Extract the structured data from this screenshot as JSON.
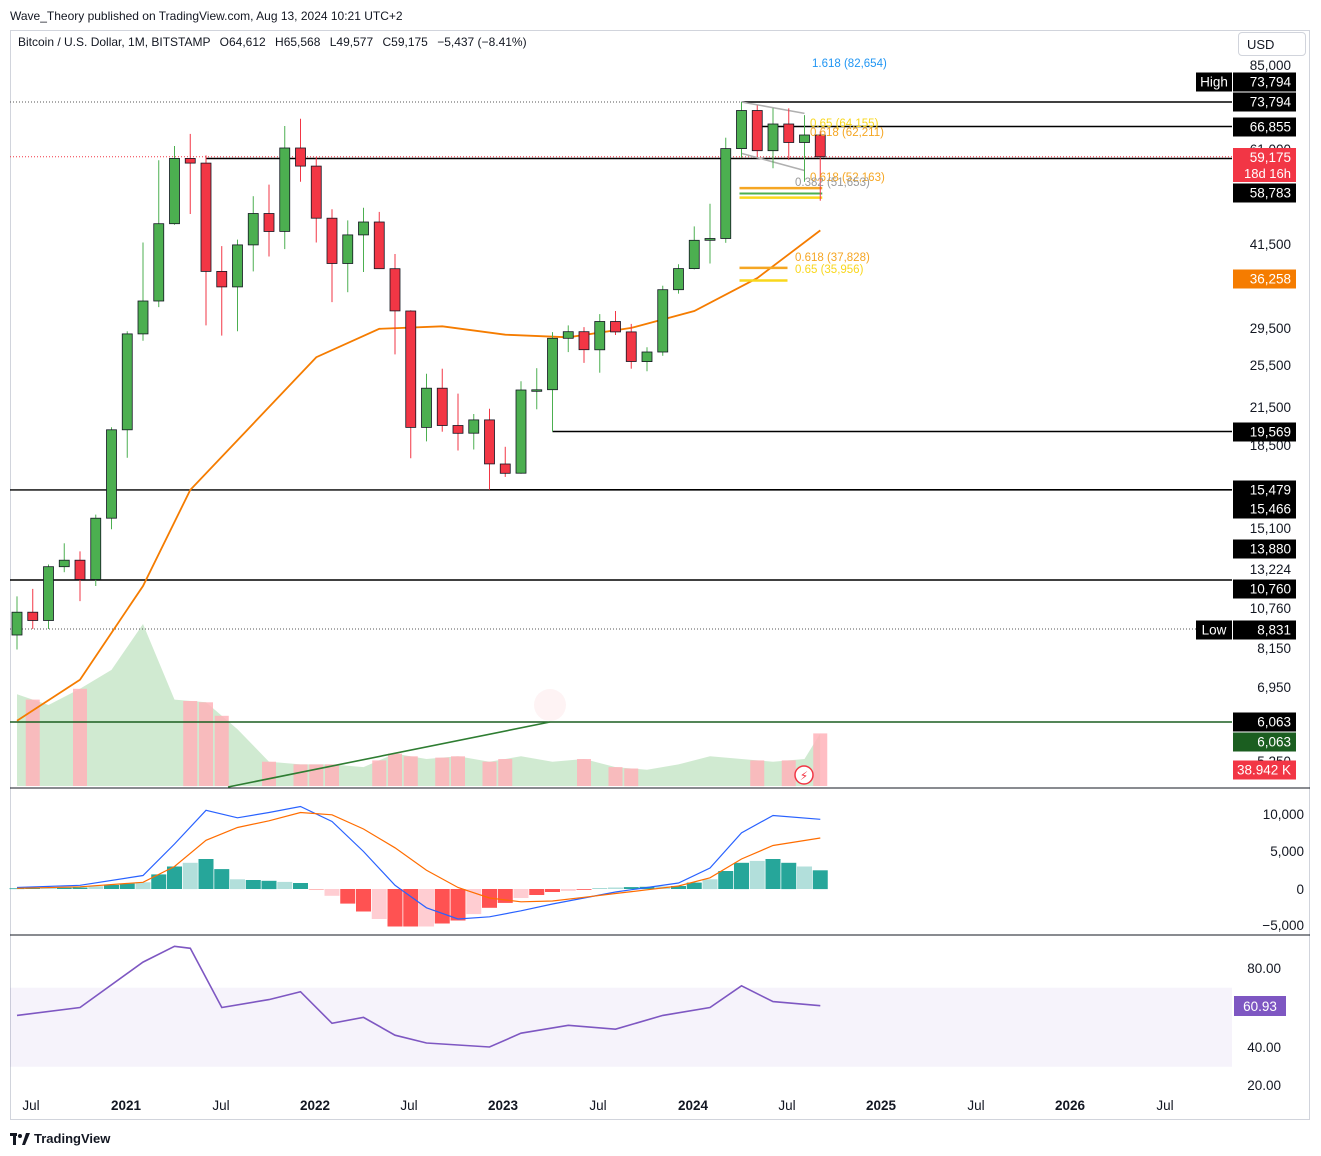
{
  "header": {
    "publisher": "Wave_Theory published on TradingView.com, Aug 13, 2024 10:21 UTC+2",
    "symbol": "Bitcoin / U.S. Dollar, 1M, BITSTAMP",
    "open_label": "O",
    "open": "64,612",
    "high_label": "H",
    "high": "65,568",
    "low_label": "L",
    "low": "49,577",
    "close_label": "C",
    "close": "59,175",
    "change": "−5,437 (−8.41%)",
    "currency": "USD"
  },
  "footer": {
    "brand": "TradingView",
    "logo_icon": "tradingview-logo-icon"
  },
  "colors": {
    "up": "#26a69a",
    "up_candle": "#4caf50",
    "down_candle": "#f23645",
    "ma": "#f57c00",
    "macd": "#2962ff",
    "signal": "#ff6d00",
    "rsi": "#7e57c2",
    "vol_up": "#c8e6c9",
    "vol_down": "#ffb3ba"
  },
  "price_axis": {
    "labels": [
      "85,000",
      "61,000",
      "41,500",
      "29,500",
      "25,500",
      "21,500",
      "18,500",
      "15,100",
      "13,224",
      "10,760",
      "8,150",
      "6,950",
      "5,250"
    ]
  },
  "price_tags": [
    {
      "text": "High",
      "value": "73,794",
      "style": "black"
    },
    {
      "text": "",
      "value": "73,794",
      "style": "black"
    },
    {
      "text": "",
      "value": "66,855",
      "style": "black"
    },
    {
      "text": "",
      "value": "59,175",
      "sub": "18d 16h",
      "style": "red"
    },
    {
      "text": "",
      "value": "58,783",
      "style": "black"
    },
    {
      "text": "",
      "value": "36,258",
      "style": "orange"
    },
    {
      "text": "",
      "value": "19,569",
      "style": "black"
    },
    {
      "text": "",
      "value": "15,479",
      "style": "black"
    },
    {
      "text": "",
      "value": "15,466",
      "style": "black"
    },
    {
      "text": "",
      "value": "13,880",
      "style": "black"
    },
    {
      "text": "",
      "value": "10,760",
      "style": "black"
    },
    {
      "text": "Low",
      "value": "8,831",
      "style": "black"
    },
    {
      "text": "",
      "value": "6,063",
      "style": "black"
    },
    {
      "text": "",
      "value": "6,063",
      "style": "green"
    },
    {
      "text": "",
      "value": "38.942 K",
      "style": "red"
    }
  ],
  "fib_labels": [
    {
      "text": "1.618 (82,654)",
      "color": "#2196f3"
    },
    {
      "text": "0.65 (64,155)",
      "color": "#f9d71c"
    },
    {
      "text": "0.618 (62,211)",
      "color": "#f5a623"
    },
    {
      "text": "0.618 (52,163)",
      "color": "#f5a623"
    },
    {
      "text": "0.382 (51,653)",
      "color": "#999999"
    },
    {
      "text": "0.618 (37,828)",
      "color": "#f5a623"
    },
    {
      "text": "0.65 (35,956)",
      "color": "#f9d71c"
    }
  ],
  "time_axis": [
    "Jul",
    "2021",
    "Jul",
    "2022",
    "Jul",
    "2023",
    "Jul",
    "2024",
    "Jul",
    "2025",
    "Jul",
    "2026",
    "Jul"
  ],
  "macd_axis": [
    "10,000",
    "5,000",
    "0",
    "−5,000"
  ],
  "rsi_axis": [
    "80.00",
    "40.00",
    "20.00"
  ],
  "rsi_tag": "60.93",
  "chart_data": [
    {
      "type": "candlestick",
      "title": "Bitcoin / U.S. Dollar, 1M, BITSTAMP",
      "scale": "log",
      "x": [
        "2020-05",
        "2020-06",
        "2020-07",
        "2020-08",
        "2020-09",
        "2020-10",
        "2020-11",
        "2020-12",
        "2021-01",
        "2021-02",
        "2021-03",
        "2021-04",
        "2021-05",
        "2021-06",
        "2021-07",
        "2021-08",
        "2021-09",
        "2021-10",
        "2021-11",
        "2021-12",
        "2022-01",
        "2022-02",
        "2022-03",
        "2022-04",
        "2022-05",
        "2022-06",
        "2022-07",
        "2022-08",
        "2022-09",
        "2022-10",
        "2022-11",
        "2022-12",
        "2023-01",
        "2023-02",
        "2023-03",
        "2023-04",
        "2023-05",
        "2023-06",
        "2023-07",
        "2023-08",
        "2023-09",
        "2023-10",
        "2023-11",
        "2023-12",
        "2024-01",
        "2024-02",
        "2024-03",
        "2024-04",
        "2024-05",
        "2024-06",
        "2024-07",
        "2024-08"
      ],
      "open": [
        8620,
        9450,
        9140,
        11350,
        11650,
        10780,
        13800,
        19700,
        28990,
        33100,
        45200,
        58800,
        57700,
        37300,
        35040,
        41500,
        47100,
        43800,
        61300,
        57000,
        46200,
        38500,
        43200,
        45500,
        37700,
        31800,
        19900,
        23300,
        20050,
        19430,
        20500,
        17170,
        16540,
        23130,
        23150,
        28480,
        29250,
        27200,
        30480,
        29230,
        25940,
        26960,
        34650,
        37720,
        42280,
        42580,
        61160,
        71300,
        60650,
        67530,
        62680,
        64612
      ],
      "high": [
        10070,
        10380,
        11450,
        12470,
        12070,
        14000,
        19900,
        29300,
        41900,
        58350,
        61800,
        64900,
        59500,
        41300,
        42400,
        50500,
        52900,
        67000,
        69000,
        59100,
        47900,
        45800,
        48200,
        47400,
        40000,
        31900,
        24700,
        25200,
        22800,
        21000,
        21450,
        18400,
        23950,
        25250,
        29200,
        30000,
        29800,
        31400,
        31800,
        30190,
        27480,
        35200,
        38400,
        44700,
        48960,
        63900,
        73794,
        72800,
        71950,
        71950,
        70000,
        65568
      ],
      "low": [
        8130,
        8830,
        8831,
        11100,
        9880,
        10500,
        13200,
        17600,
        28200,
        32300,
        45000,
        47000,
        30000,
        28800,
        29300,
        37300,
        39600,
        40800,
        53500,
        41900,
        32950,
        34300,
        37200,
        37700,
        26700,
        17570,
        18800,
        19550,
        18125,
        18200,
        15479,
        16300,
        16500,
        21400,
        19569,
        26940,
        25800,
        24800,
        28860,
        25200,
        24950,
        26540,
        34100,
        37600,
        38500,
        41850,
        59000,
        59200,
        56500,
        58400,
        53500,
        49577
      ],
      "close": [
        9450,
        9140,
        11350,
        11650,
        10780,
        13800,
        19700,
        28990,
        33100,
        45200,
        58800,
        57700,
        37300,
        35040,
        41500,
        47100,
        43800,
        61300,
        57000,
        46200,
        38500,
        43200,
        45500,
        37700,
        31800,
        19900,
        23300,
        20050,
        19430,
        20500,
        17170,
        16540,
        23130,
        23150,
        28480,
        29250,
        27200,
        30480,
        29230,
        25940,
        26960,
        34650,
        37720,
        42280,
        42580,
        61160,
        71300,
        60650,
        67530,
        62680,
        64612,
        59175
      ],
      "ma_x": [
        "2020-05",
        "2020-09",
        "2021-01",
        "2021-04",
        "2021-08",
        "2021-12",
        "2022-04",
        "2022-08",
        "2022-12",
        "2023-04",
        "2023-08",
        "2023-12",
        "2024-04",
        "2024-08"
      ],
      "ma": [
        6100,
        7200,
        10500,
        15466,
        20200,
        26400,
        29600,
        29900,
        28900,
        28600,
        29700,
        31800,
        36300,
        44000
      ],
      "volume_x": [
        "2020-05",
        "2020-07",
        "2020-09",
        "2020-11",
        "2021-01",
        "2021-03",
        "2021-05",
        "2021-07",
        "2021-09",
        "2021-11",
        "2022-01",
        "2022-03",
        "2022-05",
        "2022-07",
        "2022-09",
        "2022-11",
        "2023-01",
        "2023-03",
        "2023-05",
        "2023-07",
        "2023-09",
        "2023-11",
        "2024-01",
        "2024-03",
        "2024-05",
        "2024-07",
        "2024-08"
      ],
      "volume_k": [
        68,
        60,
        72,
        86,
        120,
        64,
        62,
        42,
        18,
        16,
        16,
        14,
        24,
        20,
        22,
        18,
        22,
        18,
        20,
        14,
        12,
        16,
        22,
        20,
        18,
        20,
        38.942
      ],
      "levels": [
        73794,
        66855,
        59175,
        58783,
        19569,
        15479,
        15466,
        13880,
        10760,
        8831
      ]
    },
    {
      "type": "macd",
      "x": [
        "2020-05",
        "2020-09",
        "2021-01",
        "2021-03",
        "2021-05",
        "2021-07",
        "2021-09",
        "2021-11",
        "2022-01",
        "2022-03",
        "2022-05",
        "2022-07",
        "2022-09",
        "2022-11",
        "2023-01",
        "2023-03",
        "2023-05",
        "2023-07",
        "2023-09",
        "2023-11",
        "2024-01",
        "2024-03",
        "2024-05",
        "2024-08"
      ],
      "macd": [
        200,
        500,
        1800,
        6000,
        10500,
        9500,
        10200,
        11000,
        9000,
        5000,
        500,
        -2500,
        -4000,
        -3700,
        -2900,
        -2000,
        -1200,
        -400,
        200,
        800,
        2800,
        7500,
        9800,
        9300
      ],
      "signal": [
        100,
        300,
        900,
        3000,
        6500,
        8200,
        9100,
        10200,
        9900,
        8000,
        5500,
        2500,
        200,
        -1200,
        -1700,
        -1600,
        -1100,
        -600,
        -100,
        400,
        1500,
        4000,
        5800,
        6800
      ],
      "histogram": [
        100,
        200,
        900,
        3000,
        4000,
        1300,
        1100,
        800,
        -900,
        -3000,
        -5000,
        -5000,
        -4200,
        -2500,
        -1200,
        -400,
        -100,
        200,
        300,
        400,
        1300,
        3500,
        4000,
        2500
      ]
    },
    {
      "type": "line",
      "name": "RSI",
      "x": [
        "2020-05",
        "2020-09",
        "2021-01",
        "2021-03",
        "2021-04",
        "2021-06",
        "2021-09",
        "2021-11",
        "2022-01",
        "2022-03",
        "2022-05",
        "2022-07",
        "2022-09",
        "2022-11",
        "2023-01",
        "2023-04",
        "2023-07",
        "2023-10",
        "2024-01",
        "2024-03",
        "2024-05",
        "2024-08"
      ],
      "values": [
        56,
        60,
        83,
        91,
        90,
        60,
        64,
        68,
        52,
        55,
        46,
        42,
        41,
        40,
        47,
        51,
        49,
        56,
        60,
        71,
        63,
        60.93
      ],
      "ylim": [
        20,
        100
      ]
    }
  ]
}
